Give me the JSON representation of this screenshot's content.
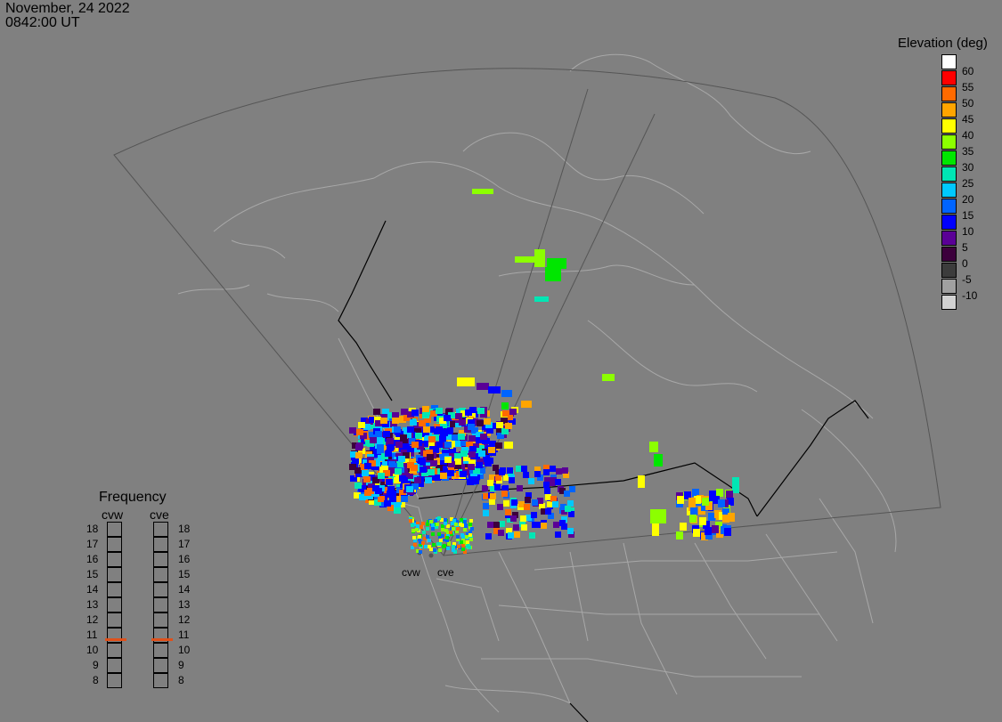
{
  "header": {
    "date": "November, 24 2022",
    "time": "0842:00 UT"
  },
  "colorbar": {
    "title": "Elevation (deg)",
    "items": [
      {
        "label": "60",
        "color": "#ffffff"
      },
      {
        "label": "55",
        "color": "#ff0000"
      },
      {
        "label": "50",
        "color": "#ff6a00"
      },
      {
        "label": "45",
        "color": "#ffa500"
      },
      {
        "label": "40",
        "color": "#ffff00"
      },
      {
        "label": "35",
        "color": "#8cff00"
      },
      {
        "label": "30",
        "color": "#00e600"
      },
      {
        "label": "25",
        "color": "#00e6b4"
      },
      {
        "label": "20",
        "color": "#00c8ff"
      },
      {
        "label": "15",
        "color": "#0064ff"
      },
      {
        "label": "10",
        "color": "#0000ff"
      },
      {
        "label": "5",
        "color": "#5a0096"
      },
      {
        "label": "0",
        "color": "#3c003c"
      },
      {
        "label": "-5",
        "color": "#3c3c3c"
      },
      {
        "label": "-10",
        "color": "#a0a0a0"
      },
      {
        "label": "",
        "color": "#d2d2d2"
      }
    ]
  },
  "frequency": {
    "title": "Frequency",
    "radars": [
      "cvw",
      "cve"
    ],
    "ticks": [
      "18",
      "17",
      "16",
      "15",
      "14",
      "13",
      "12",
      "11",
      "10",
      "9",
      "8"
    ],
    "selected": {
      "cvw": "11",
      "cve": "11"
    },
    "marker_color": "#e0501a"
  },
  "radars": {
    "labels": [
      "cvw",
      "cve"
    ]
  }
}
